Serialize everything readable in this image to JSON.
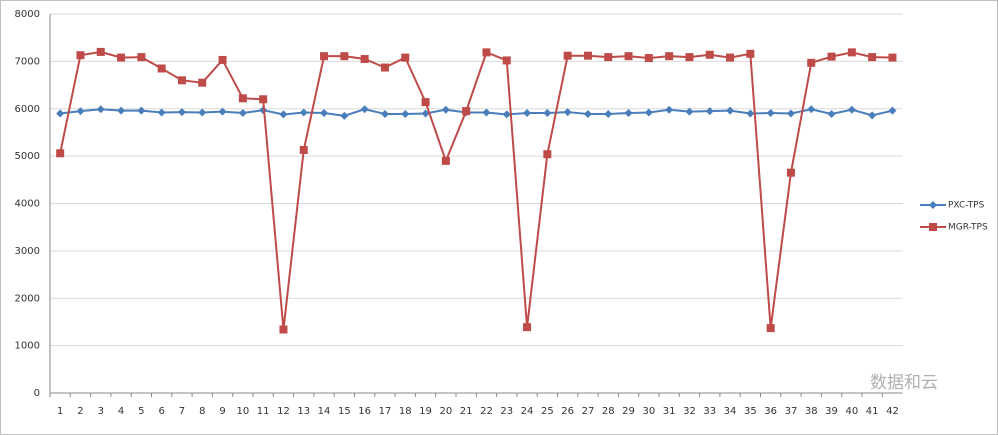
{
  "chart_data": {
    "type": "line",
    "categories": [
      "1",
      "2",
      "3",
      "4",
      "5",
      "6",
      "7",
      "8",
      "9",
      "10",
      "11",
      "12",
      "13",
      "14",
      "15",
      "16",
      "17",
      "18",
      "19",
      "20",
      "21",
      "22",
      "23",
      "24",
      "25",
      "26",
      "27",
      "28",
      "29",
      "30",
      "31",
      "32",
      "33",
      "34",
      "35",
      "36",
      "37",
      "38",
      "39",
      "40",
      "41",
      "42"
    ],
    "series": [
      {
        "name": "PXC-TPS",
        "color": "#4a7ebb",
        "marker": "diamond",
        "values": [
          5900,
          5950,
          5990,
          5960,
          5960,
          5920,
          5930,
          5920,
          5940,
          5910,
          5970,
          5880,
          5920,
          5910,
          5850,
          5990,
          5890,
          5890,
          5900,
          5980,
          5920,
          5920,
          5880,
          5910,
          5910,
          5930,
          5890,
          5890,
          5910,
          5920,
          5980,
          5940,
          5950,
          5960,
          5900,
          5910,
          5900,
          5990,
          5890,
          5980,
          5860,
          5960
        ]
      },
      {
        "name": "MGR-TPS",
        "color": "#be4b48",
        "marker": "square",
        "values": [
          5060,
          7130,
          7200,
          7080,
          7090,
          6850,
          6600,
          6550,
          7030,
          6220,
          6200,
          1340,
          5130,
          7110,
          7110,
          7050,
          6870,
          7080,
          6140,
          4900,
          5950,
          7190,
          7020,
          1390,
          5040,
          7120,
          7120,
          7090,
          7110,
          7070,
          7110,
          7090,
          7140,
          7080,
          7160,
          1370,
          4650,
          6970,
          7100,
          7190,
          7090,
          7080
        ]
      }
    ],
    "ylim": [
      0,
      8000
    ],
    "yticks": [
      0,
      1000,
      2000,
      3000,
      4000,
      5000,
      6000,
      7000,
      8000
    ],
    "grid": true,
    "legend": "right",
    "watermark": "数据和云"
  }
}
